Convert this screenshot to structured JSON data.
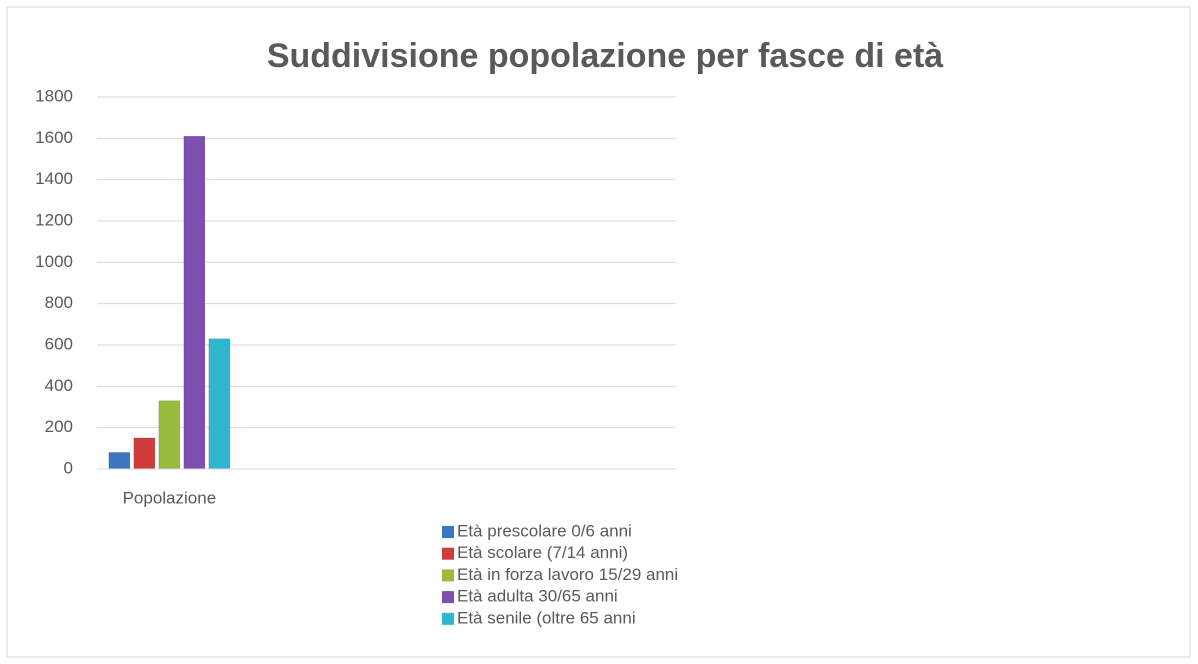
{
  "chart_data": {
    "type": "bar",
    "title": "Suddivisione popolazione per fasce di età",
    "categories": [
      "Popolazione",
      null,
      null,
      null
    ],
    "series": [
      {
        "name": "Età prescolare 0/6 anni",
        "color": "#3b76c2",
        "values": [
          80,
          null,
          null,
          null
        ]
      },
      {
        "name": "Età scolare (7/14 anni)",
        "color": "#cf3b3b",
        "values": [
          150,
          null,
          null,
          null
        ]
      },
      {
        "name": "Età in forza lavoro 15/29 anni",
        "color": "#98bb3a",
        "values": [
          330,
          null,
          null,
          null
        ]
      },
      {
        "name": "Età adulta 30/65 anni",
        "color": "#7d4fb0",
        "values": [
          1610,
          null,
          null,
          null
        ]
      },
      {
        "name": "Età senile (oltre 65 anni",
        "color": "#2fb6cf",
        "values": [
          630,
          null,
          null,
          null
        ]
      }
    ],
    "ylim": [
      0,
      1800
    ],
    "yticks": [
      0,
      200,
      400,
      600,
      800,
      1000,
      1200,
      1400,
      1600,
      1800
    ],
    "grid": true,
    "legend": "bottom"
  }
}
